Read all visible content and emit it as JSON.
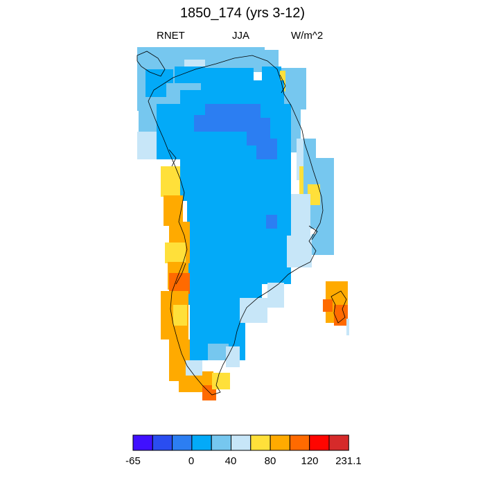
{
  "title": "1850_174 (yrs 3-12)",
  "labels": {
    "left": "RNET",
    "center": "JJA",
    "right": "W/m^2"
  },
  "colorbar": {
    "colors": [
      "#4010ff",
      "#2a4df0",
      "#2c7ef2",
      "#03aaf8",
      "#76c7ef",
      "#c7e6f8",
      "#ffe03a",
      "#ffaa00",
      "#ff6a00",
      "#ff0500",
      "#d62a2a"
    ],
    "tick_labels": [
      "-65",
      "0",
      "40",
      "80",
      "120",
      "231.1"
    ]
  },
  "legend_palette": {
    "very_low": "#2c7ef2",
    "low": "#03aaf8",
    "mid_low": "#76c7ef",
    "mid": "#c7e6f8",
    "mid_high": "#ffe03a",
    "high": "#ffaa00",
    "very_high": "#ff6a00"
  }
}
